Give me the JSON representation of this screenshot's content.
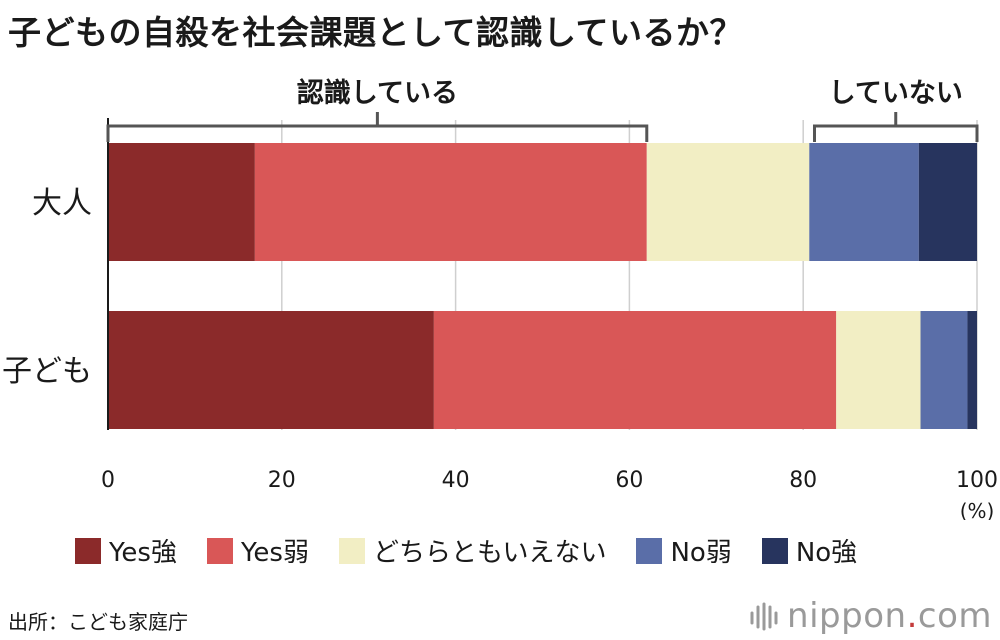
{
  "title": "子どもの自殺を社会課題として認識しているか？",
  "chart_data": {
    "type": "bar",
    "orientation": "horizontal",
    "stacked": true,
    "categories": [
      "大人",
      "子ども"
    ],
    "series": [
      {
        "name": "Yes強",
        "color": "#8b2a2a",
        "values": [
          16.9,
          37.5
        ]
      },
      {
        "name": "Yes弱",
        "color": "#d95757",
        "values": [
          45.1,
          46.3
        ]
      },
      {
        "name": "どちらともいえない",
        "color": "#f2eec4",
        "values": [
          18.7,
          9.7
        ]
      },
      {
        "name": "No弱",
        "color": "#5a6ea8",
        "values": [
          12.6,
          5.4
        ]
      },
      {
        "name": "No強",
        "color": "#27345e",
        "values": [
          6.7,
          1.1
        ]
      }
    ],
    "xlim": [
      0,
      100
    ],
    "xticks": [
      "0",
      "20",
      "40",
      "60",
      "80",
      "100"
    ],
    "xunit": "(%)",
    "grid": true,
    "legend": "bottom",
    "annotations": [
      {
        "label": "認識している",
        "range": [
          0,
          62
        ]
      },
      {
        "label": "していない",
        "range": [
          81.3,
          100
        ]
      }
    ]
  },
  "source": "出所：こども家庭庁",
  "brand": {
    "name": "nippon",
    "dot": ".",
    "suffix": "com"
  }
}
